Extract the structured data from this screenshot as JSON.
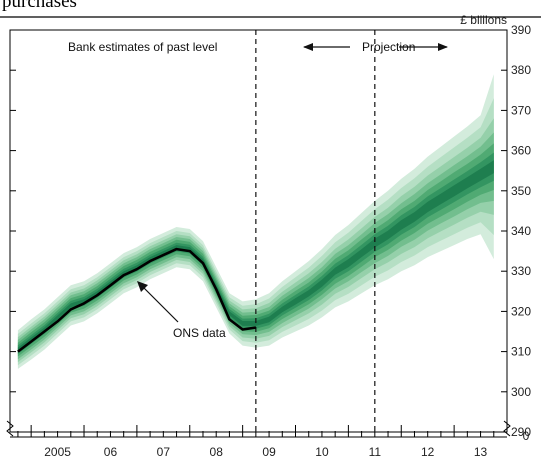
{
  "header": {
    "caption_fragment": "purchases"
  },
  "chart_data": {
    "type": "area",
    "unit_label": "£ billions",
    "ylim": [
      290,
      390
    ],
    "y_ticks": [
      290,
      300,
      310,
      320,
      330,
      340,
      350,
      360,
      370,
      380,
      390
    ],
    "x_range": [
      2004.6,
      2014.0
    ],
    "x_tick_labels": [
      {
        "label": "2005",
        "x": 2005.0
      },
      {
        "label": "06",
        "x": 2006.0
      },
      {
        "label": "07",
        "x": 2007.0
      },
      {
        "label": "08",
        "x": 2008.0
      },
      {
        "label": "09",
        "x": 2009.0
      },
      {
        "label": "10",
        "x": 2010.0
      },
      {
        "label": "11",
        "x": 2011.0
      },
      {
        "label": "12",
        "x": 2012.0
      },
      {
        "label": "13",
        "x": 2013.0
      }
    ],
    "quarters": [
      2004.75,
      2005.0,
      2005.25,
      2005.5,
      2005.75,
      2006.0,
      2006.25,
      2006.5,
      2006.75,
      2007.0,
      2007.25,
      2007.5,
      2007.75,
      2008.0,
      2008.25,
      2008.5,
      2008.75,
      2009.0,
      2009.25,
      2009.5,
      2009.75,
      2010.0,
      2010.25,
      2010.5,
      2010.75,
      2011.0,
      2011.25,
      2011.5,
      2011.75,
      2012.0,
      2012.25,
      2012.5,
      2012.75,
      2013.0,
      2013.25,
      2013.5,
      2013.75
    ],
    "central": [
      310.5,
      313.0,
      315.5,
      318.5,
      321.5,
      322.5,
      324.5,
      327.0,
      329.5,
      331.0,
      333.0,
      334.5,
      336.0,
      335.5,
      332.5,
      326.0,
      319.5,
      317.0,
      317.0,
      318.0,
      320.5,
      322.5,
      324.5,
      327.0,
      330.0,
      332.0,
      334.5,
      337.0,
      339.0,
      341.5,
      343.5,
      346.0,
      348.0,
      350.0,
      352.0,
      354.0,
      356.0
    ],
    "fan_widths": [
      [
        4.8,
        3.9,
        3.1,
        2.4,
        1.7,
        1.1,
        0.5
      ],
      [
        5,
        4,
        3.2,
        2.5,
        1.8,
        1.1,
        0.5
      ],
      [
        5,
        4,
        3.2,
        2.5,
        1.8,
        1.1,
        0.5
      ],
      [
        5,
        4,
        3.2,
        2.5,
        1.8,
        1.1,
        0.5
      ],
      [
        5,
        4,
        3.2,
        2.5,
        1.8,
        1.1,
        0.5
      ],
      [
        5,
        4,
        3.2,
        2.5,
        1.8,
        1.1,
        0.5
      ],
      [
        5,
        4,
        3.2,
        2.5,
        1.8,
        1.1,
        0.5
      ],
      [
        5,
        4,
        3.2,
        2.5,
        1.8,
        1.1,
        0.5
      ],
      [
        5,
        4,
        3.2,
        2.5,
        1.8,
        1.1,
        0.5
      ],
      [
        5,
        4,
        3.2,
        2.5,
        1.8,
        1.1,
        0.5
      ],
      [
        5,
        4,
        3.2,
        2.5,
        1.8,
        1.1,
        0.5
      ],
      [
        5,
        4,
        3.2,
        2.5,
        1.8,
        1.1,
        0.5
      ],
      [
        5,
        4,
        3.2,
        2.5,
        1.8,
        1.1,
        0.5
      ],
      [
        5,
        4,
        3.2,
        2.5,
        1.8,
        1.1,
        0.5
      ],
      [
        5,
        4,
        3.2,
        2.5,
        1.8,
        1.1,
        0.5
      ],
      [
        5,
        4,
        3.2,
        2.5,
        1.8,
        1.1,
        0.5
      ],
      [
        5,
        4,
        3.2,
        2.5,
        1.8,
        1.1,
        0.5
      ],
      [
        5.5,
        4.4,
        3.5,
        2.7,
        1.9,
        1.2,
        0.6
      ],
      [
        6,
        4.8,
        3.8,
        2.9,
        2.1,
        1.3,
        0.6
      ],
      [
        6.5,
        5.2,
        4.1,
        3.1,
        2.2,
        1.4,
        0.7
      ],
      [
        7,
        5.6,
        4.4,
        3.4,
        2.4,
        1.5,
        0.7
      ],
      [
        7.5,
        6,
        4.7,
        3.6,
        2.6,
        1.6,
        0.8
      ],
      [
        8,
        6.4,
        5,
        3.8,
        2.7,
        1.7,
        0.8
      ],
      [
        8.5,
        6.8,
        5.3,
        4,
        2.9,
        1.8,
        0.9
      ],
      [
        9,
        7.2,
        5.6,
        4.3,
        3.1,
        1.9,
        0.9
      ],
      [
        9.5,
        7.6,
        5.9,
        4.5,
        3.2,
        2,
        1
      ],
      [
        10,
        8,
        6.2,
        4.7,
        3.4,
        2.1,
        1
      ],
      [
        10.5,
        8.4,
        6.5,
        5,
        3.5,
        2.2,
        1.1
      ],
      [
        11,
        8.8,
        6.8,
        5.2,
        3.7,
        2.3,
        1.1
      ],
      [
        11.5,
        9.2,
        7.2,
        5.4,
        3.9,
        2.4,
        1.2
      ],
      [
        12,
        9.6,
        7.5,
        5.7,
        4,
        2.5,
        1.2
      ],
      [
        12.5,
        10,
        7.8,
        5.9,
        4.2,
        2.6,
        1.3
      ],
      [
        13,
        10.4,
        8.1,
        6.1,
        4.4,
        2.7,
        1.3
      ],
      [
        13.5,
        10.8,
        8.4,
        6.4,
        4.6,
        2.8,
        1.4
      ],
      [
        14,
        11.2,
        8.7,
        6.6,
        4.7,
        2.9,
        1.4
      ],
      [
        14.8,
        11.8,
        9.2,
        7,
        5,
        3.1,
        1.5
      ],
      [
        23,
        17,
        12,
        8.5,
        5.8,
        3.5,
        1.6
      ]
    ],
    "fan_colors": [
      "#d3ecdc",
      "#b5dfc4",
      "#95d0aa",
      "#72be8e",
      "#50aa73",
      "#339561",
      "#1e7e4f"
    ],
    "ons_data": {
      "label": "ONS data",
      "x": [
        2004.75,
        2005.0,
        2005.25,
        2005.5,
        2005.75,
        2006.0,
        2006.25,
        2006.5,
        2006.75,
        2007.0,
        2007.25,
        2007.5,
        2007.75,
        2008.0,
        2008.25,
        2008.5,
        2008.75,
        2009.0,
        2009.25
      ],
      "values": [
        310.0,
        312.5,
        315.0,
        317.5,
        320.5,
        322.0,
        324.0,
        326.5,
        329.0,
        330.5,
        332.5,
        334.0,
        335.5,
        335.0,
        332.0,
        325.5,
        318.0,
        315.5,
        316.0
      ]
    },
    "projection_start": 2009.25,
    "vertical_dashed_lines": [
      2009.25,
      2011.5
    ],
    "annotations": {
      "past_label": "Bank estimates of past level",
      "projection_label": "Projection"
    }
  }
}
